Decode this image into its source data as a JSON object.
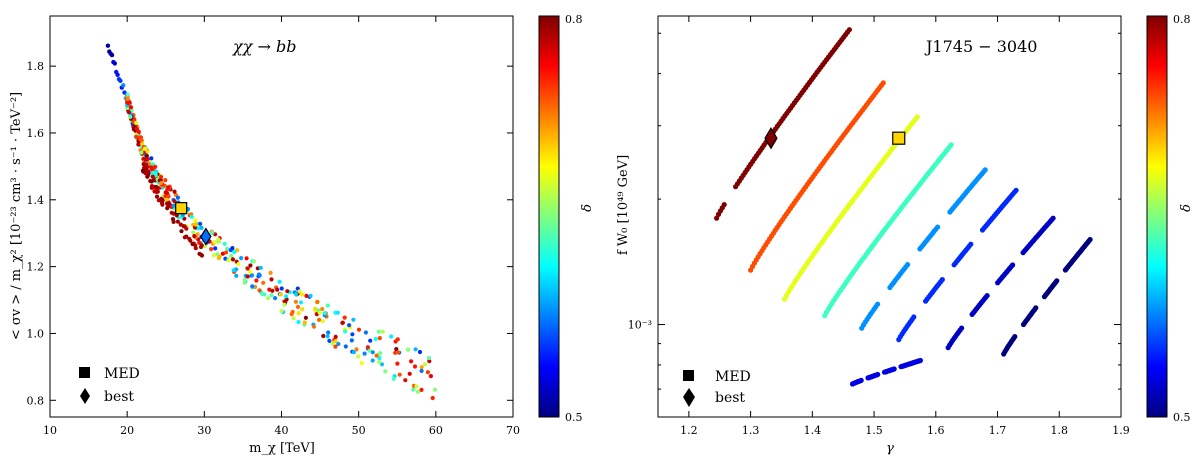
{
  "colormap": [
    "#00007f",
    "#0000ff",
    "#007fff",
    "#00ffff",
    "#7fff7f",
    "#ffff00",
    "#ff7f00",
    "#ff0000",
    "#7f0000"
  ],
  "chart_data": [
    {
      "type": "scatter",
      "title": "χχ → bb",
      "xlabel": "m_χ [TeV]",
      "ylabel": "< σv > / m_χ² [10⁻²³ cm³ · s⁻¹ · TeV⁻²]",
      "xlim": [
        10,
        70
      ],
      "ylim": [
        0.75,
        1.95
      ],
      "xticks": [
        10,
        20,
        30,
        40,
        50,
        60,
        70
      ],
      "yticks": [
        0.8,
        1.0,
        1.2,
        1.4,
        1.6,
        1.8
      ],
      "xtick_labels": [
        "10",
        "20",
        "30",
        "40",
        "50",
        "60",
        "70"
      ],
      "ytick_labels": [
        "0.8",
        "1.0",
        "1.2",
        "1.4",
        "1.6",
        "1.8"
      ],
      "colorbar": {
        "label": "δ",
        "min": 0.5,
        "max": 0.8,
        "min_label": "0.5",
        "max_label": "0.8"
      },
      "curve": [
        [
          17.5,
          1.86
        ],
        [
          20,
          1.7
        ],
        [
          22,
          1.55
        ],
        [
          24.5,
          1.45
        ],
        [
          27,
          1.37
        ],
        [
          30,
          1.29
        ],
        [
          35,
          1.2
        ],
        [
          40,
          1.12
        ],
        [
          45,
          1.05
        ],
        [
          50,
          0.98
        ],
        [
          55,
          0.93
        ],
        [
          60,
          0.88
        ]
      ],
      "markers": {
        "med": {
          "x": 27,
          "y": 1.375,
          "delta": 0.7,
          "label": "MED"
        },
        "best": {
          "x": 30.2,
          "y": 1.29,
          "delta": 0.57,
          "label": "best"
        }
      }
    },
    {
      "type": "scatter",
      "title": "J1745 − 3040",
      "xlabel": "γ",
      "ylabel": "f W₀ [10⁴⁹ GeV]",
      "xlim": [
        1.15,
        1.9
      ],
      "ylim": [
        0.0006,
        0.0055
      ],
      "yscale": "log",
      "xticks": [
        1.2,
        1.3,
        1.4,
        1.5,
        1.6,
        1.7,
        1.8,
        1.9
      ],
      "xtick_labels": [
        "1.2",
        "1.3",
        "1.4",
        "1.5",
        "1.6",
        "1.7",
        "1.8",
        "1.9"
      ],
      "ytick_major": 0.001,
      "ytick_major_label": "10⁻³",
      "colorbar": {
        "label": "δ",
        "min": 0.5,
        "max": 0.8,
        "min_label": "0.5",
        "max_label": "0.8"
      },
      "series": [
        {
          "delta": 0.8,
          "x": [
            1.245,
            1.46
          ],
          "y": [
            0.0018,
            0.0051
          ]
        },
        {
          "delta": 0.74,
          "x": [
            1.3,
            1.515
          ],
          "y": [
            0.00135,
            0.0038
          ]
        },
        {
          "delta": 0.68,
          "x": [
            1.355,
            1.57
          ],
          "y": [
            0.00115,
            0.00315
          ]
        },
        {
          "delta": 0.63,
          "x": [
            1.42,
            1.625
          ],
          "y": [
            0.00105,
            0.0027
          ]
        },
        {
          "delta": 0.58,
          "x": [
            1.48,
            1.68
          ],
          "y": [
            0.00098,
            0.00235
          ]
        },
        {
          "delta": 0.55,
          "x": [
            1.54,
            1.73
          ],
          "y": [
            0.00092,
            0.0021
          ]
        },
        {
          "delta": 0.52,
          "x": [
            1.62,
            1.79
          ],
          "y": [
            0.00088,
            0.0018
          ]
        },
        {
          "delta": 0.5,
          "x": [
            1.71,
            1.85
          ],
          "y": [
            0.00085,
            0.0016
          ]
        },
        {
          "delta": 0.53,
          "x": [
            1.465,
            1.575
          ],
          "y": [
            0.00072,
            0.00082
          ]
        }
      ],
      "markers": {
        "med": {
          "x": 1.54,
          "y": 0.0028,
          "delta": 0.7,
          "label": "MED"
        },
        "best": {
          "x": 1.333,
          "y": 0.0028,
          "delta": 0.8,
          "label": "best"
        }
      }
    }
  ]
}
